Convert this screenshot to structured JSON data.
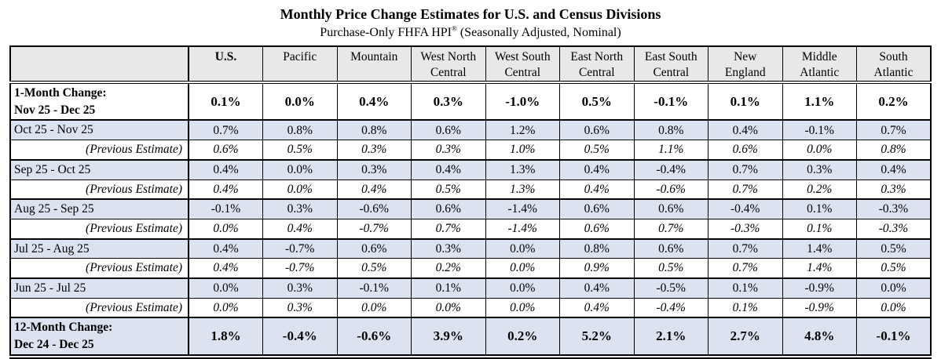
{
  "title": "Monthly Price Change Estimates for U.S. and Census Divisions",
  "subtitle": {
    "index_name": "Purchase-Only FHFA HPI",
    "registered_mark": "®",
    "qualifier": " (Seasonally Adjusted, Nominal)"
  },
  "colors": {
    "header_bg": "#e8e8e8",
    "shaded_row_bg": "#dce3f0",
    "border": "#000000"
  },
  "table": {
    "row_label_header": "",
    "columns": [
      "U.S.",
      "Pacific",
      "Mountain",
      "West North\nCentral",
      "West South\nCentral",
      "East North\nCentral",
      "East South\nCentral",
      "New\nEngland",
      "Middle\nAtlantic",
      "South\nAtlantic"
    ],
    "rows": [
      {
        "label": "1-Month Change:\nNov 25 - Dec 25",
        "type": "summary_top",
        "shaded": false,
        "values": [
          "0.1%",
          "0.0%",
          "0.4%",
          "0.3%",
          "-1.0%",
          "0.5%",
          "-0.1%",
          "0.1%",
          "1.1%",
          "0.2%"
        ]
      },
      {
        "label": "Oct 25 - Nov 25",
        "type": "month",
        "shaded": true,
        "values": [
          "0.7%",
          "0.8%",
          "0.8%",
          "0.6%",
          "1.2%",
          "0.6%",
          "0.8%",
          "0.4%",
          "-0.1%",
          "0.7%"
        ]
      },
      {
        "label": "(Previous Estimate)",
        "type": "previous",
        "shaded": false,
        "values": [
          "0.6%",
          "0.5%",
          "0.3%",
          "0.3%",
          "1.0%",
          "0.5%",
          "1.1%",
          "0.6%",
          "0.0%",
          "0.8%"
        ]
      },
      {
        "label": "Sep 25 - Oct 25",
        "type": "month",
        "shaded": true,
        "values": [
          "0.4%",
          "0.0%",
          "0.3%",
          "0.4%",
          "1.3%",
          "0.4%",
          "-0.4%",
          "0.7%",
          "0.3%",
          "0.4%"
        ]
      },
      {
        "label": "(Previous Estimate)",
        "type": "previous",
        "shaded": false,
        "values": [
          "0.4%",
          "0.0%",
          "0.4%",
          "0.5%",
          "1.3%",
          "0.4%",
          "-0.6%",
          "0.7%",
          "0.2%",
          "0.3%"
        ]
      },
      {
        "label": "Aug 25 - Sep 25",
        "type": "month",
        "shaded": true,
        "values": [
          "-0.1%",
          "0.3%",
          "-0.6%",
          "0.6%",
          "-1.4%",
          "0.6%",
          "0.6%",
          "-0.4%",
          "0.1%",
          "-0.3%"
        ]
      },
      {
        "label": "(Previous Estimate)",
        "type": "previous",
        "shaded": false,
        "values": [
          "0.0%",
          "0.4%",
          "-0.7%",
          "0.7%",
          "-1.4%",
          "0.6%",
          "0.7%",
          "-0.3%",
          "0.1%",
          "-0.3%"
        ]
      },
      {
        "label": "Jul 25 - Aug 25",
        "type": "month",
        "shaded": true,
        "values": [
          "0.4%",
          "-0.7%",
          "0.6%",
          "0.3%",
          "0.0%",
          "0.8%",
          "0.6%",
          "0.7%",
          "1.4%",
          "0.5%"
        ]
      },
      {
        "label": "(Previous Estimate)",
        "type": "previous",
        "shaded": false,
        "values": [
          "0.4%",
          "-0.7%",
          "0.5%",
          "0.2%",
          "0.0%",
          "0.9%",
          "0.5%",
          "0.7%",
          "1.4%",
          "0.5%"
        ]
      },
      {
        "label": "Jun 25 - Jul 25",
        "type": "month",
        "shaded": true,
        "values": [
          "0.0%",
          "0.3%",
          "-0.1%",
          "0.1%",
          "0.0%",
          "0.4%",
          "-0.5%",
          "0.1%",
          "-0.9%",
          "0.0%"
        ]
      },
      {
        "label": "(Previous Estimate)",
        "type": "previous",
        "shaded": false,
        "values": [
          "0.0%",
          "0.3%",
          "0.0%",
          "0.0%",
          "0.0%",
          "0.4%",
          "-0.4%",
          "0.1%",
          "-0.9%",
          "0.0%"
        ]
      },
      {
        "label": "12-Month Change:\nDec 24 - Dec 25",
        "type": "summary_bottom",
        "shaded": true,
        "values": [
          "1.8%",
          "-0.4%",
          "-0.6%",
          "3.9%",
          "0.2%",
          "5.2%",
          "2.1%",
          "2.7%",
          "4.8%",
          "-0.1%"
        ]
      }
    ]
  }
}
